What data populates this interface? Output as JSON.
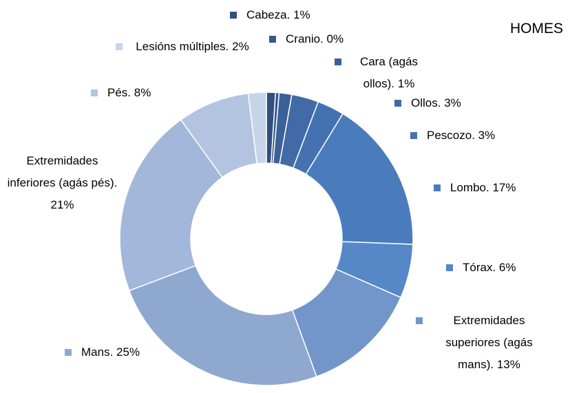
{
  "chart_data": {
    "type": "donut",
    "title": "HOMES",
    "categories": [
      "Cabeza.",
      "Cranio.",
      "Cara (agás ollos).",
      "Ollos.",
      "Pescozo.",
      "Lombo.",
      "Tórax.",
      "Extremidades superiores (agás mans).",
      "Mans.",
      "Extremidades inferiores (agás pés).",
      "Pés.",
      "Lesións múltiples."
    ],
    "values": [
      1,
      0.4,
      1.4,
      3,
      3,
      17,
      6,
      13,
      25,
      21,
      8,
      2
    ],
    "value_labels": [
      "1%",
      "0%",
      "1%",
      "3%",
      "3%",
      "17%",
      "6%",
      "13%",
      "25%",
      "21%",
      "8%",
      "2%"
    ],
    "colors": [
      "#2f4f7f",
      "#36598c",
      "#3c6199",
      "#416aa6",
      "#4472b0",
      "#4a7bbd",
      "#5687c6",
      "#7296c9",
      "#8ea8d0",
      "#a2b7d9",
      "#b3c4e0",
      "#c8d4e9"
    ]
  }
}
